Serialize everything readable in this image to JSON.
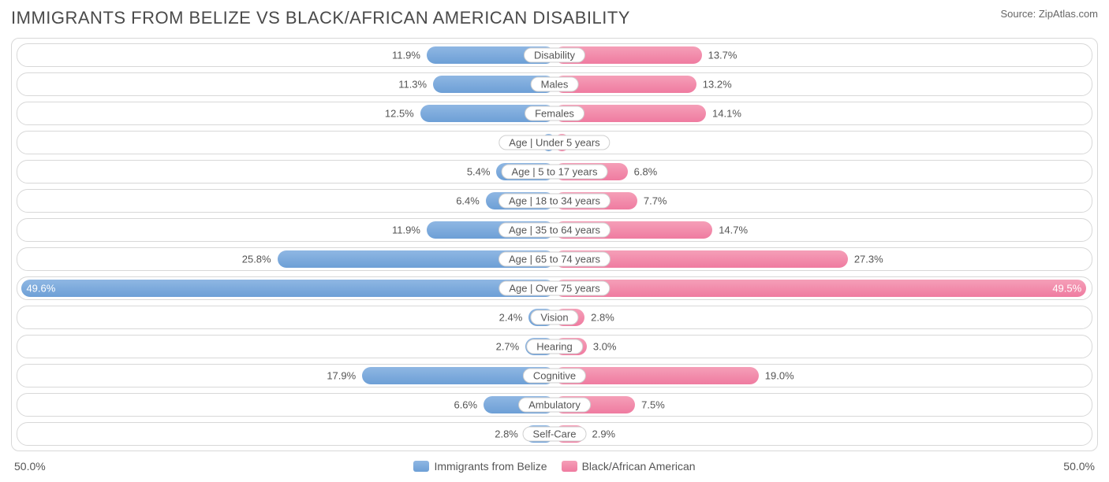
{
  "title": "IMMIGRANTS FROM BELIZE VS BLACK/AFRICAN AMERICAN DISABILITY",
  "source": "Source: ZipAtlas.com",
  "axis": {
    "min_label": "50.0%",
    "max_label": "50.0%",
    "max_value": 50.0
  },
  "colors": {
    "left_bar_top": "#8fb7e3",
    "left_bar_bottom": "#6d9fd6",
    "right_bar_top": "#f59fb8",
    "right_bar_bottom": "#ef7ba0",
    "border": "#d8d8d8",
    "text": "#555555",
    "title_text": "#4a4a4a",
    "bg": "#ffffff"
  },
  "legend": {
    "left": "Immigrants from Belize",
    "right": "Black/African American"
  },
  "rows": [
    {
      "label": "Disability",
      "left_value": 11.9,
      "left_text": "11.9%",
      "right_value": 13.7,
      "right_text": "13.7%"
    },
    {
      "label": "Males",
      "left_value": 11.3,
      "left_text": "11.3%",
      "right_value": 13.2,
      "right_text": "13.2%"
    },
    {
      "label": "Females",
      "left_value": 12.5,
      "left_text": "12.5%",
      "right_value": 14.1,
      "right_text": "14.1%"
    },
    {
      "label": "Age | Under 5 years",
      "left_value": 1.1,
      "left_text": "1.1%",
      "right_value": 1.4,
      "right_text": "1.4%"
    },
    {
      "label": "Age | 5 to 17 years",
      "left_value": 5.4,
      "left_text": "5.4%",
      "right_value": 6.8,
      "right_text": "6.8%"
    },
    {
      "label": "Age | 18 to 34 years",
      "left_value": 6.4,
      "left_text": "6.4%",
      "right_value": 7.7,
      "right_text": "7.7%"
    },
    {
      "label": "Age | 35 to 64 years",
      "left_value": 11.9,
      "left_text": "11.9%",
      "right_value": 14.7,
      "right_text": "14.7%"
    },
    {
      "label": "Age | 65 to 74 years",
      "left_value": 25.8,
      "left_text": "25.8%",
      "right_value": 27.3,
      "right_text": "27.3%"
    },
    {
      "label": "Age | Over 75 years",
      "left_value": 49.6,
      "left_text": "49.6%",
      "right_value": 49.5,
      "right_text": "49.5%",
      "inside": true
    },
    {
      "label": "Vision",
      "left_value": 2.4,
      "left_text": "2.4%",
      "right_value": 2.8,
      "right_text": "2.8%"
    },
    {
      "label": "Hearing",
      "left_value": 2.7,
      "left_text": "2.7%",
      "right_value": 3.0,
      "right_text": "3.0%"
    },
    {
      "label": "Cognitive",
      "left_value": 17.9,
      "left_text": "17.9%",
      "right_value": 19.0,
      "right_text": "19.0%"
    },
    {
      "label": "Ambulatory",
      "left_value": 6.6,
      "left_text": "6.6%",
      "right_value": 7.5,
      "right_text": "7.5%"
    },
    {
      "label": "Self-Care",
      "left_value": 2.8,
      "left_text": "2.8%",
      "right_value": 2.9,
      "right_text": "2.9%"
    }
  ]
}
